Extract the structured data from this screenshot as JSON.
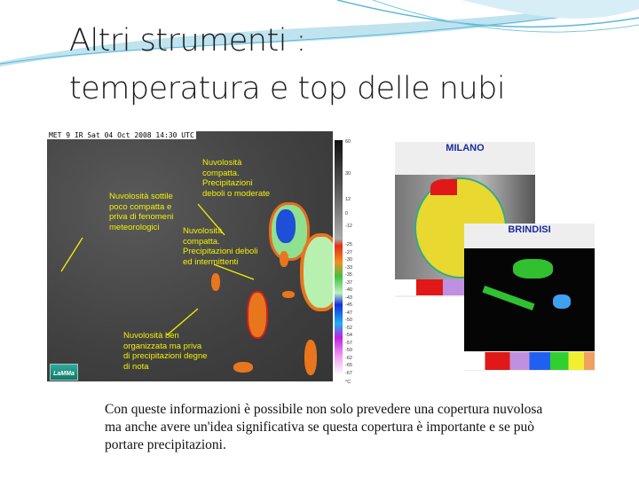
{
  "slide": {
    "title_line1": "Altri strumenti :",
    "title_line2": "temperatura e top delle nubi",
    "caption": "Con queste informazioni è possibile non solo prevedere una copertura nuvolosa ma anche avere un'idea significativa se questa copertura è importante e se può portare precipitazioni."
  },
  "satellite_image": {
    "header": "MET 9 IR Sat 04 Oct 2008 14:30 UTC",
    "annotations": [
      "Nuvolosità\ncompatta.\nPrecipitazioni\ndeboli o moderate",
      "Nuvolosità sottile\npoco compatta e\npriva di fenomeni\nmeteorologici",
      "Nuvolosità\ncompatta.\nPrecipitazioni deboli\ned intermittenti",
      "Nuvolosità ben\norganizzata ma priva\ndi precipitazioni degne\ndi nota"
    ],
    "logo": "LaMMa",
    "scale_labels": [
      "60",
      "30",
      "12",
      "0",
      "-12",
      "-25",
      "-27",
      "-30",
      "-33",
      "-35",
      "-37",
      "-40",
      "-43",
      "-45",
      "-47",
      "-50",
      "-52",
      "-54",
      "-57",
      "-59",
      "-62",
      "-65",
      "-67",
      "°C"
    ]
  },
  "radar_images": [
    {
      "name": "MILANO"
    },
    {
      "name": "BRINDISI"
    }
  ],
  "colors": {
    "annotation": "#f4f000",
    "radar_title": "#1a2aa0",
    "swoosh": "#5bb8d8"
  }
}
